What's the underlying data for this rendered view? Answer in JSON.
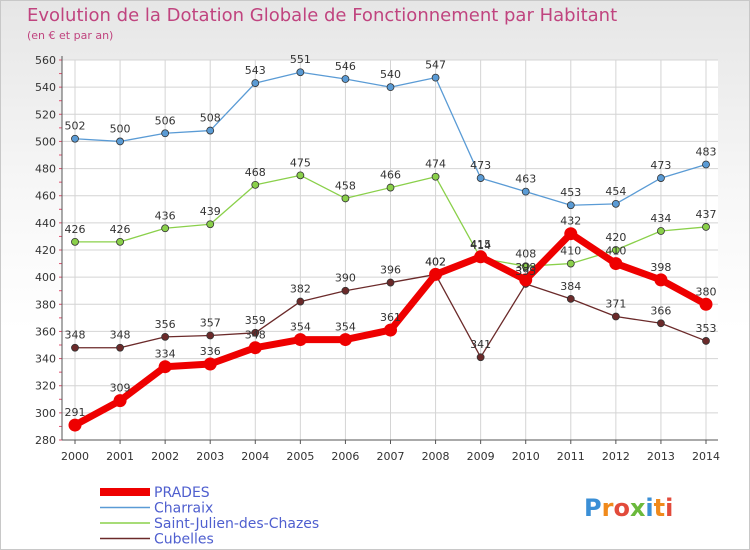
{
  "title": "Evolution de la Dotation Globale de Fonctionnement par Habitant",
  "subtitle": "(en € et par an)",
  "logo": "Proxiti",
  "colors": {
    "title": "#c0447f",
    "legend_text": "#4f5fcf",
    "axis": "#555555",
    "grid": "#d4d4d4"
  },
  "chart_data": {
    "type": "line",
    "title": "Evolution de la Dotation Globale de Fonctionnement par Habitant",
    "subtitle": "(en € et par an)",
    "x": [
      "2000",
      "2001",
      "2002",
      "2003",
      "2004",
      "2005",
      "2006",
      "2007",
      "2008",
      "2009",
      "2010",
      "2011",
      "2012",
      "2013",
      "2014"
    ],
    "ylim": [
      280,
      560
    ],
    "yticks": [
      280,
      300,
      320,
      340,
      360,
      380,
      400,
      420,
      440,
      460,
      480,
      500,
      520,
      540,
      560
    ],
    "grid": true,
    "legend_position": "bottom-left",
    "series": [
      {
        "name": "PRADES",
        "color": "#ee0000",
        "values": [
          291,
          309,
          334,
          336,
          348,
          354,
          354,
          361,
          402,
          415,
          398,
          432,
          410,
          398,
          380
        ]
      },
      {
        "name": "Charraix",
        "color": "#5a9bd5",
        "values": [
          502,
          500,
          506,
          508,
          543,
          551,
          546,
          540,
          547,
          473,
          463,
          453,
          454,
          473,
          483
        ]
      },
      {
        "name": "Saint-Julien-des-Chazes",
        "color": "#8ad04a",
        "values": [
          426,
          426,
          436,
          439,
          468,
          475,
          458,
          466,
          474,
          414,
          408,
          410,
          420,
          434,
          437
        ]
      },
      {
        "name": "Cubelles",
        "color": "#6b2a2a",
        "values": [
          348,
          348,
          356,
          357,
          359,
          382,
          390,
          396,
          402,
          341,
          395,
          384,
          371,
          366,
          353
        ]
      }
    ]
  }
}
